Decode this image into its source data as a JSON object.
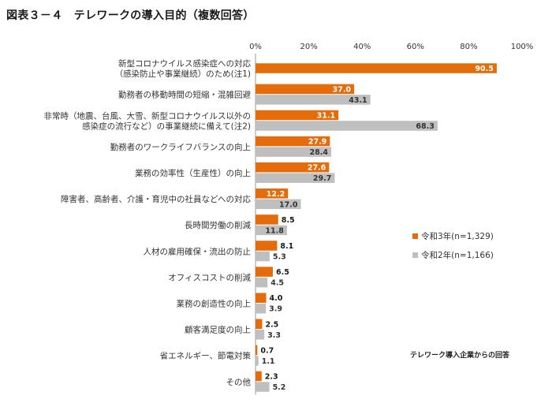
{
  "title": "図表３－４　テレワークの導入目的（複数回答）",
  "chart_data": {
    "type": "bar",
    "orientation": "horizontal",
    "categories": [
      [
        "新型コロナウイルス感染症への対応",
        "（感染防止や事業継続）のため(注1)"
      ],
      [
        "勤務者の移動時間の短縮・混雑回避"
      ],
      [
        "非常時（地震、台風、大雪、新型コロナウイルス以外の",
        "感染症の流行など）の事業継続に備えて(注2)"
      ],
      [
        "勤務者のワークライフバランスの向上"
      ],
      [
        "業務の効率性（生産性）の向上"
      ],
      [
        "障害者、高齢者、介護・育児中の社員などへの対応"
      ],
      [
        "長時間労働の削減"
      ],
      [
        "人材の雇用確保・流出の防止"
      ],
      [
        "オフィスコストの削減"
      ],
      [
        "業務の創造性の向上"
      ],
      [
        "顧客満足度の向上"
      ],
      [
        "省エネルギー、節電対策"
      ],
      [
        "その他"
      ]
    ],
    "series": [
      {
        "name": "令和3年(n=1,329)",
        "color": "#e46c0a",
        "values": [
          90.5,
          37.0,
          31.1,
          27.9,
          27.6,
          12.2,
          8.5,
          8.1,
          6.5,
          4.0,
          2.5,
          0.7,
          2.3
        ],
        "labels": [
          "90.5",
          "37.0",
          "31.1",
          "27.9",
          "27.6",
          "12.2",
          "8.5",
          "8.1",
          "6.5",
          "4.0",
          "2.5",
          "0.7",
          "2.3"
        ]
      },
      {
        "name": "令和2年(n=1,166)",
        "color": "#bfbfbf",
        "values": [
          null,
          43.1,
          68.3,
          28.4,
          29.7,
          17.0,
          11.8,
          5.3,
          4.5,
          3.9,
          3.3,
          1.1,
          5.2
        ],
        "labels": [
          "",
          "43.1",
          "68.3",
          "28.4",
          "29.7",
          "17.0",
          "11.8",
          "5.3",
          "4.5",
          "3.9",
          "3.3",
          "1.1",
          "5.2"
        ]
      }
    ],
    "xlim": [
      0,
      100
    ],
    "ticks": [
      "0%",
      "20%",
      "40%",
      "60%",
      "80%",
      "100%"
    ],
    "tick_values": [
      0,
      20,
      40,
      60,
      80,
      100
    ],
    "legend_position": "right",
    "grid": false
  },
  "note": "テレワーク導入企業からの回答"
}
